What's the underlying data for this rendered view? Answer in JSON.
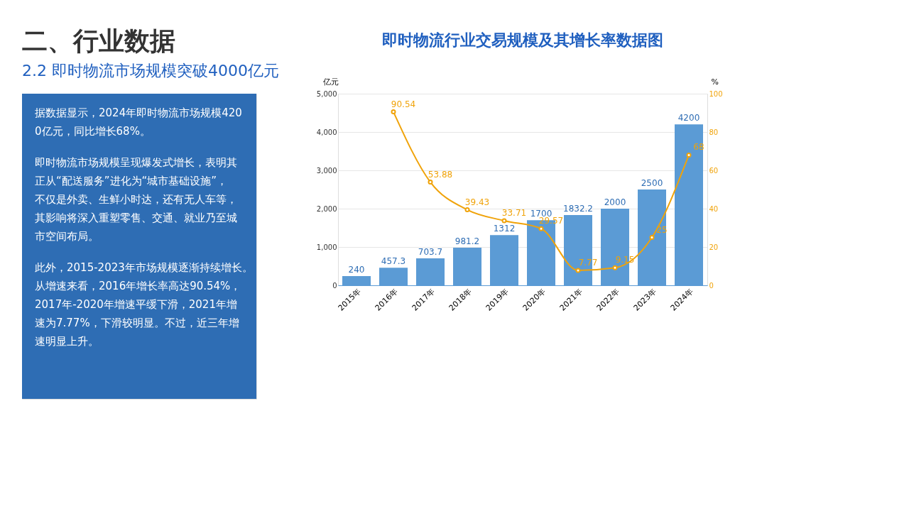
{
  "chart_data": [
    {
      "type": "other",
      "title": "二、行业数据",
      "subtitle": "2.2 即时物流市场规模突破4000亿元",
      "annotations": [
        "据数据显示，2024年即时物流市场规模4200亿元，同比增长68%。",
        "即时物流市场规模呈现爆发式增长，表明其正从“配送服务”进化为“城市基础设施”，不仅是外卖、生鲜小时达，还有无人车等，其影响将深入重塑零售、交通、就业乃至城市空间布局。",
        "此外，2015-2023年市场规模逐渐持续增长。从增速来看，2016年增长率高达90.54%，2017年-2020年增速平缓下滑，2021年增速为7.77%，下滑较明显。不过，近三年增速明显上升。"
      ]
    },
    {
      "type": "bar",
      "title": "即时物流行业交易规模及其增长率数据图",
      "ylabel": "亿元",
      "y2label": "%",
      "categories": [
        "2015年",
        "2016年",
        "2017年",
        "2018年",
        "2019年",
        "2020年",
        "2021年",
        "2022年",
        "2023年",
        "2024年"
      ],
      "series": [
        {
          "type": "bar",
          "color": "#5b9bd5",
          "values": [
            240,
            457.3,
            703.7,
            981.2,
            1312,
            1700,
            1832.2,
            2000,
            2500,
            4200
          ]
        },
        {
          "type": "line",
          "axis": "y2",
          "color": "#f0a30a",
          "values": [
            null,
            90.54,
            53.88,
            39.43,
            33.71,
            29.57,
            7.77,
            9.15,
            25,
            68
          ]
        }
      ],
      "ylim": [
        0,
        5000
      ],
      "yticks": [
        0,
        {
          "value": 1000,
          "label": "1,000"
        },
        {
          "value": 2000,
          "label": "2,000"
        },
        {
          "value": 3000,
          "label": "3,000"
        },
        {
          "value": 4000,
          "label": "4,000"
        },
        {
          "value": 5000,
          "label": "5,000"
        }
      ],
      "y2lim": [
        0,
        100
      ],
      "y2ticks": [
        0,
        20,
        40,
        60,
        80,
        100
      ],
      "data_labels": true,
      "grid": "y",
      "marker": "circle",
      "line_style": "solid"
    }
  ]
}
